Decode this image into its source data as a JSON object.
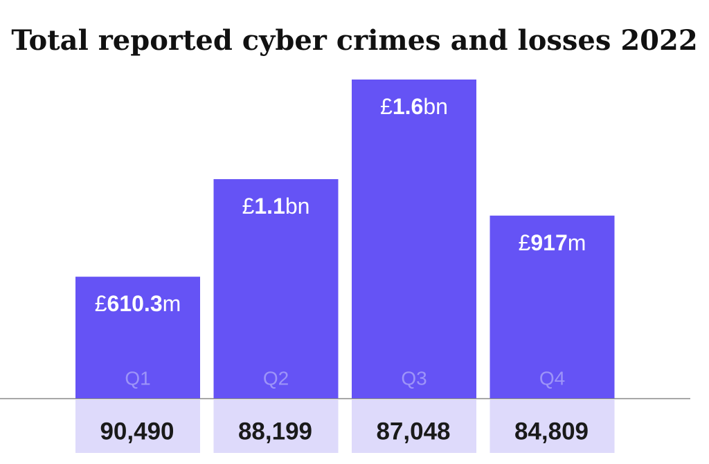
{
  "chart_data": {
    "type": "bar",
    "title": "Total reported cyber crimes and losses 2022",
    "categories": [
      "Q1",
      "Q2",
      "Q3",
      "Q4"
    ],
    "values": [
      610300000,
      1100000000,
      1600000000,
      917000000
    ],
    "value_labels": [
      "£610.3m",
      "£1.1bn",
      "£1.6bn",
      "£917m"
    ],
    "color": "#6553f5",
    "reported_crimes": {
      "values": [
        90490,
        88199,
        87048,
        84809
      ],
      "value_labels": [
        "90,490",
        "88,199",
        "87,048",
        "84,809"
      ],
      "color": "#dedafb"
    }
  }
}
